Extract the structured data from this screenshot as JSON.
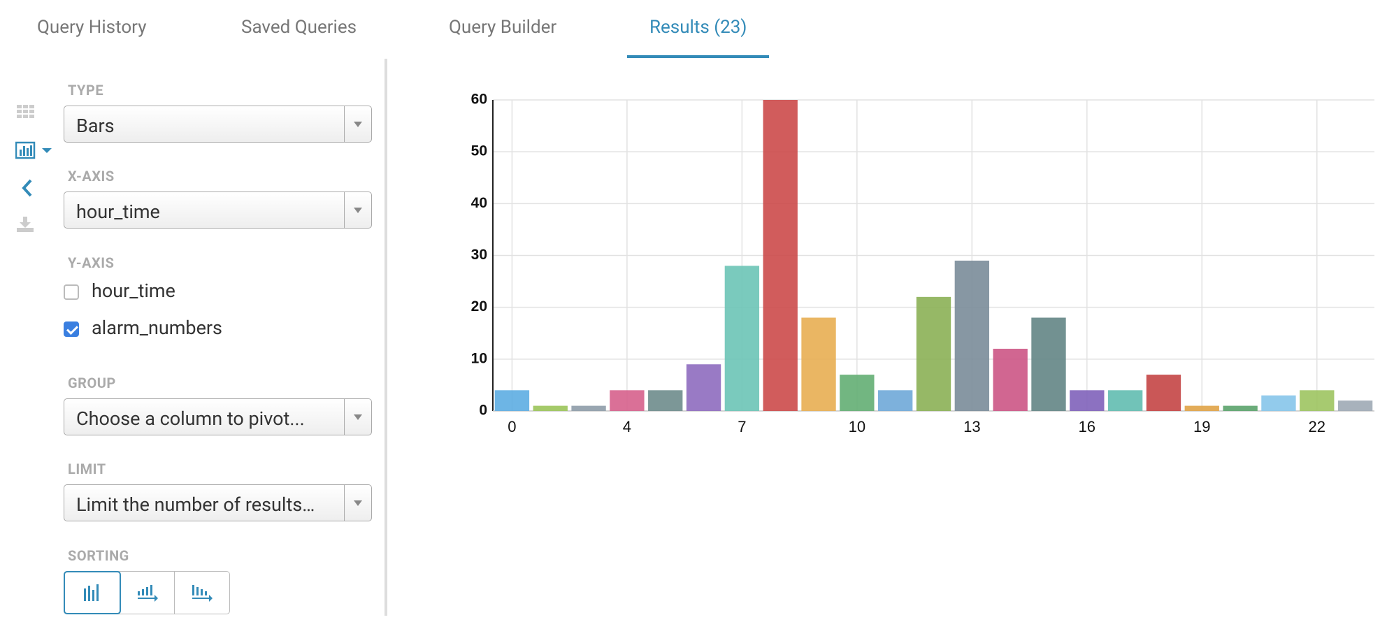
{
  "tabs": [
    "Query History",
    "Saved Queries",
    "Query Builder",
    "Results (23)"
  ],
  "active_tab": 3,
  "sidebar": {
    "type_label": "TYPE",
    "type_value": "Bars",
    "x_axis_label": "X-AXIS",
    "x_axis_value": "hour_time",
    "y_axis_label": "Y-AXIS",
    "y_axis_options": [
      {
        "label": "hour_time",
        "checked": false
      },
      {
        "label": "alarm_numbers",
        "checked": true
      }
    ],
    "group_label": "GROUP",
    "group_placeholder": "Choose a column to pivot...",
    "limit_label": "LIMIT",
    "limit_placeholder": "Limit the number of results…",
    "sorting_label": "SORTING"
  },
  "chart_data": {
    "type": "bar",
    "categories": [
      "0",
      null,
      null,
      "4",
      null,
      null,
      "7",
      null,
      null,
      "10",
      null,
      null,
      "13",
      null,
      null,
      "16",
      null,
      null,
      "19",
      null,
      null,
      "22",
      null
    ],
    "values": [
      4,
      1,
      1,
      4,
      4,
      9,
      28,
      60,
      18,
      7,
      4,
      22,
      29,
      12,
      18,
      4,
      4,
      7,
      1,
      1,
      3,
      4,
      2
    ],
    "colors": [
      "#5dade2",
      "#9bc45a",
      "#8e9ca8",
      "#d6608c",
      "#6e8c8c",
      "#8e6bbf",
      "#6cc4b6",
      "#cc4a4a",
      "#e8ae52",
      "#63ae73",
      "#6fa9d8",
      "#8bb055",
      "#7a8c99",
      "#cc5585",
      "#638585",
      "#8062ba",
      "#62bdb0",
      "#c44545",
      "#e0a347",
      "#5ba36b",
      "#86c5ea",
      "#9dc460",
      "#9eaab5"
    ],
    "ylim": [
      0,
      60
    ],
    "yticks": [
      0,
      10,
      20,
      30,
      40,
      50,
      60
    ],
    "grid": true
  }
}
